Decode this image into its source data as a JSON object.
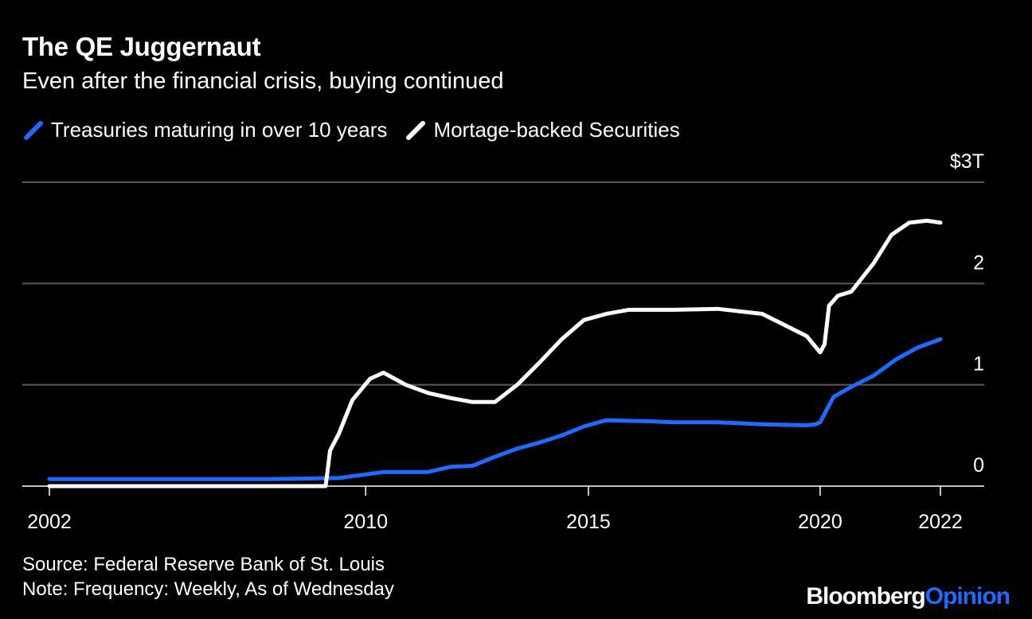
{
  "chart_data": {
    "type": "line",
    "title": "The QE Juggernaut",
    "subtitle": "Even after the financial crisis, buying continued",
    "xlim": [
      2002,
      2022
    ],
    "ylim": [
      0,
      3
    ],
    "x_ticks": [
      {
        "value": 2002,
        "label": "2002"
      },
      {
        "value": 2009.1,
        "label": "2010"
      },
      {
        "value": 2014.1,
        "label": "2015"
      },
      {
        "value": 2019.3,
        "label": "2020"
      },
      {
        "value": 2022,
        "label": "2022"
      }
    ],
    "y_ticks": [
      {
        "value": 0,
        "label": "0"
      },
      {
        "value": 1,
        "label": "1"
      },
      {
        "value": 2,
        "label": "2"
      },
      {
        "value": 3,
        "label": "$3T"
      }
    ],
    "grid": true,
    "legend_position": "top-left",
    "series": [
      {
        "name": "Treasuries maturing in over 10 years",
        "color": "#1f6bff",
        "x": [
          2002,
          2007,
          2008.5,
          2009.5,
          2010.5,
          2011,
          2011.5,
          2012,
          2012.5,
          2013,
          2013.5,
          2014,
          2014.5,
          2015.5,
          2016,
          2017,
          2018,
          2019,
          2019.2,
          2019.3,
          2019.6,
          2020,
          2020.5,
          2021,
          2021.5,
          2022
        ],
        "y": [
          0.07,
          0.07,
          0.08,
          0.14,
          0.14,
          0.19,
          0.2,
          0.29,
          0.37,
          0.43,
          0.5,
          0.59,
          0.65,
          0.64,
          0.63,
          0.63,
          0.61,
          0.6,
          0.61,
          0.63,
          0.88,
          0.98,
          1.09,
          1.25,
          1.37,
          1.45
        ]
      },
      {
        "name": "Mortage-backed Securities",
        "color": "#ffffff",
        "x": [
          2002,
          2008.2,
          2008.3,
          2008.5,
          2008.8,
          2009.2,
          2009.5,
          2010,
          2010.5,
          2011,
          2011.5,
          2012,
          2012.5,
          2013,
          2013.5,
          2014,
          2014.5,
          2015,
          2016,
          2017,
          2018,
          2019,
          2019.3,
          2019.4,
          2019.5,
          2019.7,
          2020,
          2020.5,
          2020.9,
          2021.3,
          2021.7,
          2022
        ],
        "y": [
          0.0,
          0.0,
          0.35,
          0.52,
          0.85,
          1.06,
          1.12,
          1.0,
          0.92,
          0.87,
          0.83,
          0.83,
          1.0,
          1.22,
          1.45,
          1.64,
          1.7,
          1.74,
          1.74,
          1.75,
          1.7,
          1.48,
          1.32,
          1.4,
          1.78,
          1.88,
          1.92,
          2.2,
          2.48,
          2.6,
          2.62,
          2.6
        ]
      }
    ]
  },
  "footer": {
    "source": "Source: Federal Reserve Bank of St. Louis",
    "note": "Note: Frequency: Weekly, As of Wednesday"
  },
  "brand": {
    "part1": "Bloomberg",
    "part2": "Opinion"
  }
}
